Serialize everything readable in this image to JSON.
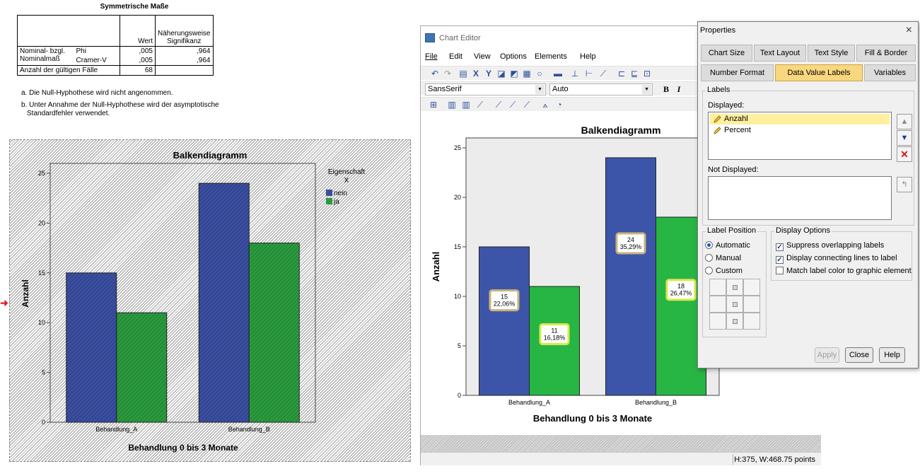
{
  "stats_table": {
    "title": "Symmetrische Maße",
    "col_wert": "Wert",
    "col_sig": "Näherungsweise Signifikanz",
    "row_group_label": "Nominal- bzgl. Nominalmaß",
    "rows": [
      {
        "label": "Phi",
        "wert": ",005",
        "sig": ",964"
      },
      {
        "label": "Cramer-V",
        "wert": ",005",
        "sig": ",964"
      }
    ],
    "total_label": "Anzahl der gültigen Fälle",
    "total_value": "68",
    "footnote_a": "a. Die Null-Hyphothese wird nicht angenommen.",
    "footnote_b1": "b. Unter Annahme der Null-Hyphothese wird der asymptotische",
    "footnote_b2": "Standardfehler verwendet."
  },
  "output_chart": {
    "legend_title_1": "Eigenschaft",
    "legend_title_2": "X",
    "legend_items": [
      "nein",
      "ja"
    ]
  },
  "chart_data": [
    {
      "type": "bar",
      "title": "Balkendiagramm",
      "xlabel": "Behandlung 0 bis 3 Monate",
      "ylabel": "Anzahl",
      "categories": [
        "Behandlung_A",
        "Behandlung_B"
      ],
      "series": [
        {
          "name": "nein",
          "values": [
            15,
            24
          ],
          "color": "#3a4ea0"
        },
        {
          "name": "ja",
          "values": [
            11,
            18
          ],
          "color": "#2a9a3e"
        }
      ],
      "ylim": [
        0,
        26
      ],
      "yticks": [
        0,
        5,
        10,
        15,
        20,
        25
      ],
      "legend": "right"
    },
    {
      "type": "bar",
      "title": "Balkendiagramm",
      "xlabel": "Behandlung 0 bis 3 Monate",
      "ylabel": "Anzahl",
      "categories": [
        "Behandlung_A",
        "Behandlung_B"
      ],
      "series": [
        {
          "name": "nein",
          "values": [
            15,
            24
          ],
          "percent": [
            "22,06%",
            "35,29%"
          ],
          "color": "#3d55a8"
        },
        {
          "name": "ja",
          "values": [
            11,
            18
          ],
          "percent": [
            "16,18%",
            "26,47%"
          ],
          "color": "#27b544"
        }
      ],
      "ylim": [
        0,
        26
      ],
      "yticks": [
        0,
        5,
        10,
        15,
        20,
        25
      ]
    }
  ],
  "editor": {
    "title": "Chart Editor",
    "menu": [
      "File",
      "Edit",
      "View",
      "Options",
      "Elements",
      "Help"
    ],
    "font_combo": "SansSerif",
    "size_combo": "Auto",
    "bold": "B",
    "italic": "I",
    "status": "H:375, W:468.75 points"
  },
  "props": {
    "title": "Properties",
    "close_glyph": "×",
    "tabs_row1": [
      "Chart Size",
      "Text Layout",
      "Text Style",
      "Fill & Border"
    ],
    "tabs_row2": [
      "Number Format",
      "Data Value Labels",
      "Variables"
    ],
    "active_tab": "Data Value Labels",
    "labels_group": "Labels",
    "displayed_label": "Displayed:",
    "displayed_items": [
      "Anzahl",
      "Percent"
    ],
    "not_displayed_label": "Not Displayed:",
    "label_position_group": "Label Position",
    "positions": [
      "Automatic",
      "Manual",
      "Custom"
    ],
    "selected_position": "Automatic",
    "display_options_group": "Display Options",
    "options": [
      {
        "label": "Suppress overlapping labels",
        "checked": true
      },
      {
        "label": "Display connecting lines to label",
        "checked": true
      },
      {
        "label": "Match label color to graphic element",
        "checked": false
      }
    ],
    "apply": "Apply",
    "close": "Close",
    "help": "Help"
  }
}
